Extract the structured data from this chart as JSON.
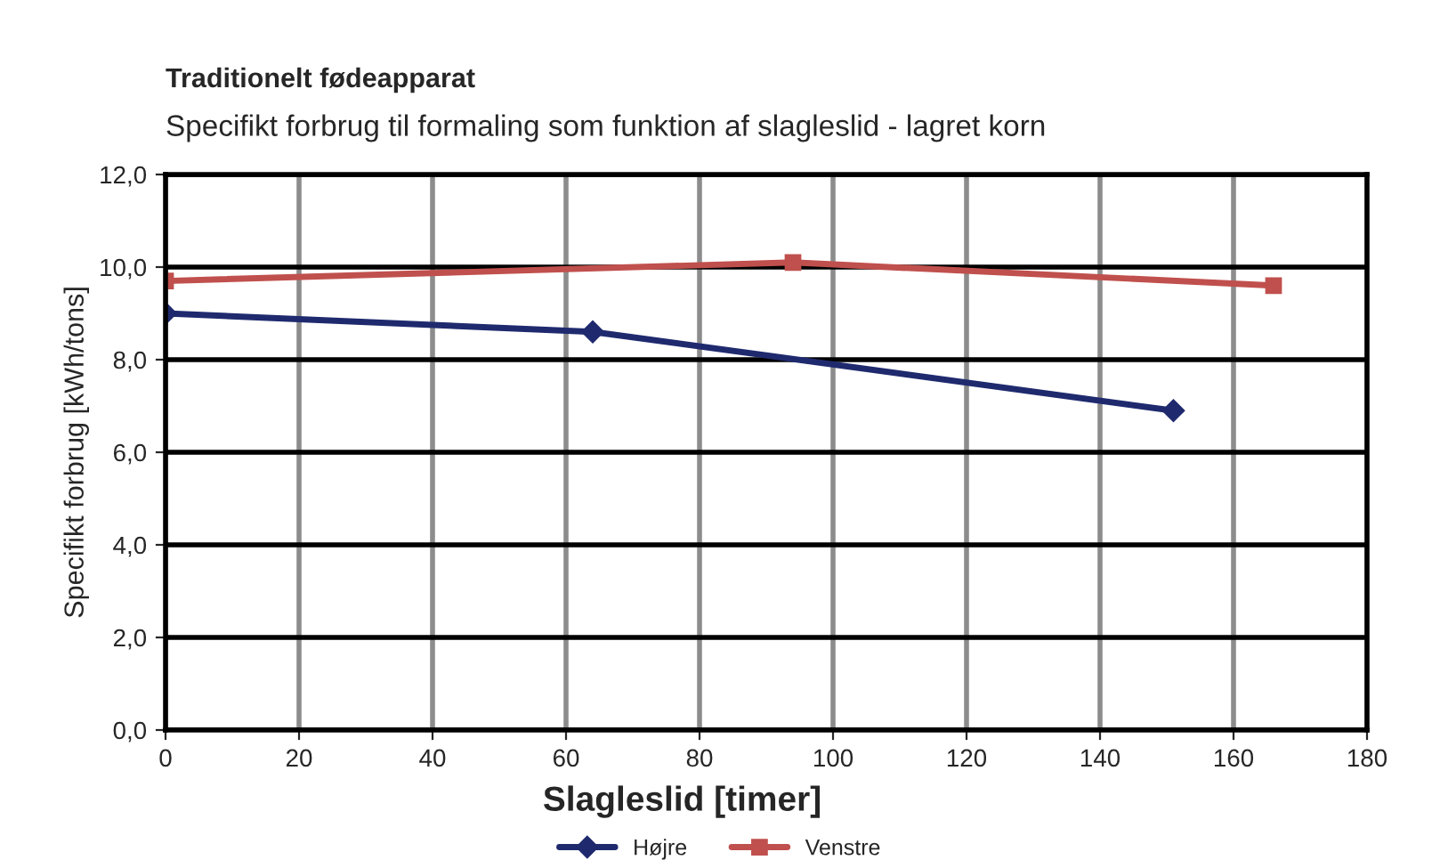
{
  "chart_data": {
    "type": "line",
    "title": "Traditionelt fødeapparat",
    "subtitle": "Specifikt forbrug til formaling som funktion af slagleslid - lagret korn",
    "xlabel": "Slagleslid [timer]",
    "ylabel": "Specifikt forbrug [kWh/tons]",
    "series": [
      {
        "name": "Højre",
        "color": "#1f2a6e",
        "marker": "diamond",
        "x": [
          0,
          64,
          151
        ],
        "values": [
          9.0,
          8.6,
          6.9
        ]
      },
      {
        "name": "Venstre",
        "color": "#c0504d",
        "marker": "square",
        "x": [
          0,
          94,
          166
        ],
        "values": [
          9.7,
          10.1,
          9.6
        ]
      }
    ],
    "xlim": [
      0,
      180
    ],
    "xticks": [
      0,
      20,
      40,
      60,
      80,
      100,
      120,
      140,
      160,
      180
    ],
    "ylim": [
      0,
      12
    ],
    "yticks": [
      {
        "value": 0,
        "label": "0,0"
      },
      {
        "value": 2,
        "label": "2,0"
      },
      {
        "value": 4,
        "label": "4,0"
      },
      {
        "value": 6,
        "label": "6,0"
      },
      {
        "value": 8,
        "label": "8,0"
      },
      {
        "value": 10,
        "label": "10,0"
      },
      {
        "value": 12,
        "label": "12,0"
      }
    ],
    "grid": true,
    "legend": "bottom",
    "line_style": "solid"
  }
}
